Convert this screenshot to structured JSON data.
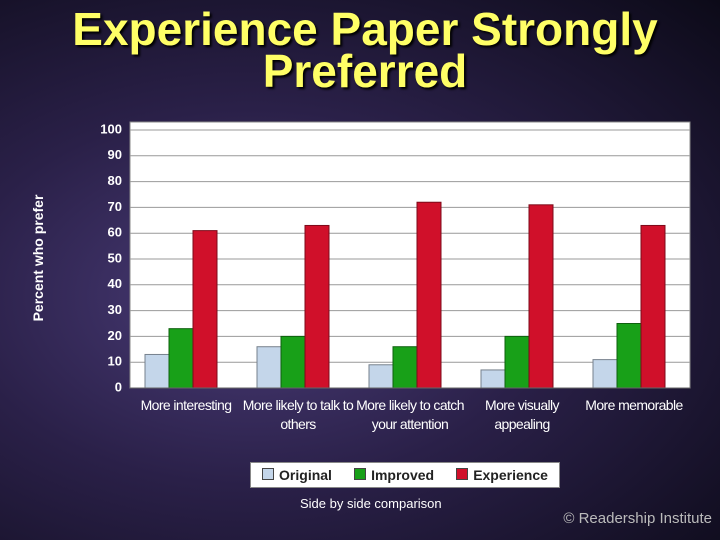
{
  "chart_data": {
    "type": "bar",
    "title": "Experience Paper Strongly Preferred",
    "y_label": "Percent who prefer",
    "categories": [
      "More interesting",
      "More likely to talk to others",
      "More likely to catch your attention",
      "More visually appealing",
      "More memorable"
    ],
    "series": [
      {
        "name": "Original",
        "color": "#c4d6ea",
        "values": [
          13,
          16,
          9,
          7,
          11
        ]
      },
      {
        "name": "Improved",
        "color": "#18a018",
        "values": [
          23,
          20,
          16,
          20,
          25
        ]
      },
      {
        "name": "Experience",
        "color": "#d0102a",
        "values": [
          61,
          63,
          72,
          71,
          63
        ]
      }
    ],
    "ylim": [
      0,
      100
    ],
    "yticks": [
      0,
      10,
      20,
      30,
      40,
      50,
      60,
      70,
      80,
      90,
      100
    ],
    "grid": true,
    "legend": "bottom",
    "note": "Side by side comparison",
    "credit": "© Readership Institute"
  }
}
